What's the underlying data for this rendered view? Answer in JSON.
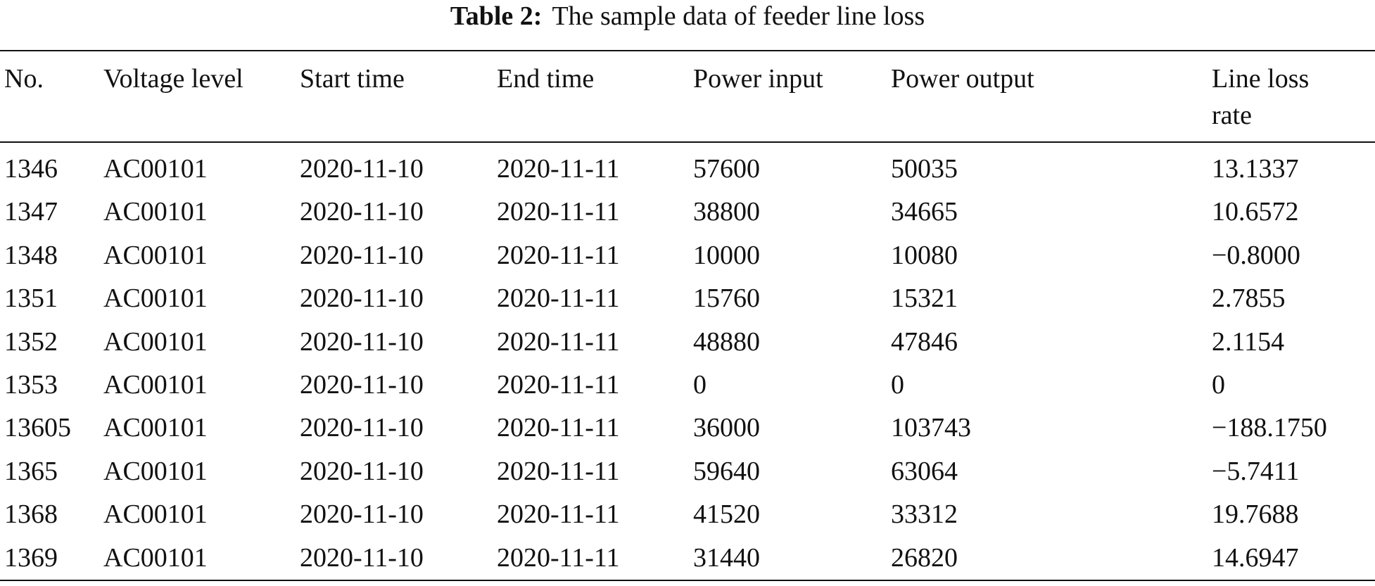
{
  "caption": {
    "label": "Table 2:",
    "text": "The sample data of feeder line loss"
  },
  "table": {
    "header": [
      "No.",
      "Voltage level",
      "Start time",
      "End time",
      "Power input",
      "Power output",
      "Line loss rate"
    ],
    "rows": [
      [
        "1346",
        "AC00101",
        "2020-11-10",
        "2020-11-11",
        "57600",
        "50035",
        "13.1337"
      ],
      [
        "1347",
        "AC00101",
        "2020-11-10",
        "2020-11-11",
        "38800",
        "34665",
        "10.6572"
      ],
      [
        "1348",
        "AC00101",
        "2020-11-10",
        "2020-11-11",
        "10000",
        "10080",
        "−0.8000"
      ],
      [
        "1351",
        "AC00101",
        "2020-11-10",
        "2020-11-11",
        "15760",
        "15321",
        "2.7855"
      ],
      [
        "1352",
        "AC00101",
        "2020-11-10",
        "2020-11-11",
        "48880",
        "47846",
        "2.1154"
      ],
      [
        "1353",
        "AC00101",
        "2020-11-10",
        "2020-11-11",
        "0",
        "0",
        "0"
      ],
      [
        "13605",
        "AC00101",
        "2020-11-10",
        "2020-11-11",
        "36000",
        "103743",
        "−188.1750"
      ],
      [
        "1365",
        "AC00101",
        "2020-11-10",
        "2020-11-11",
        "59640",
        "63064",
        "−5.7411"
      ],
      [
        "1368",
        "AC00101",
        "2020-11-10",
        "2020-11-11",
        "41520",
        "33312",
        "19.7688"
      ],
      [
        "1369",
        "AC00101",
        "2020-11-10",
        "2020-11-11",
        "31440",
        "26820",
        "14.6947"
      ]
    ]
  }
}
